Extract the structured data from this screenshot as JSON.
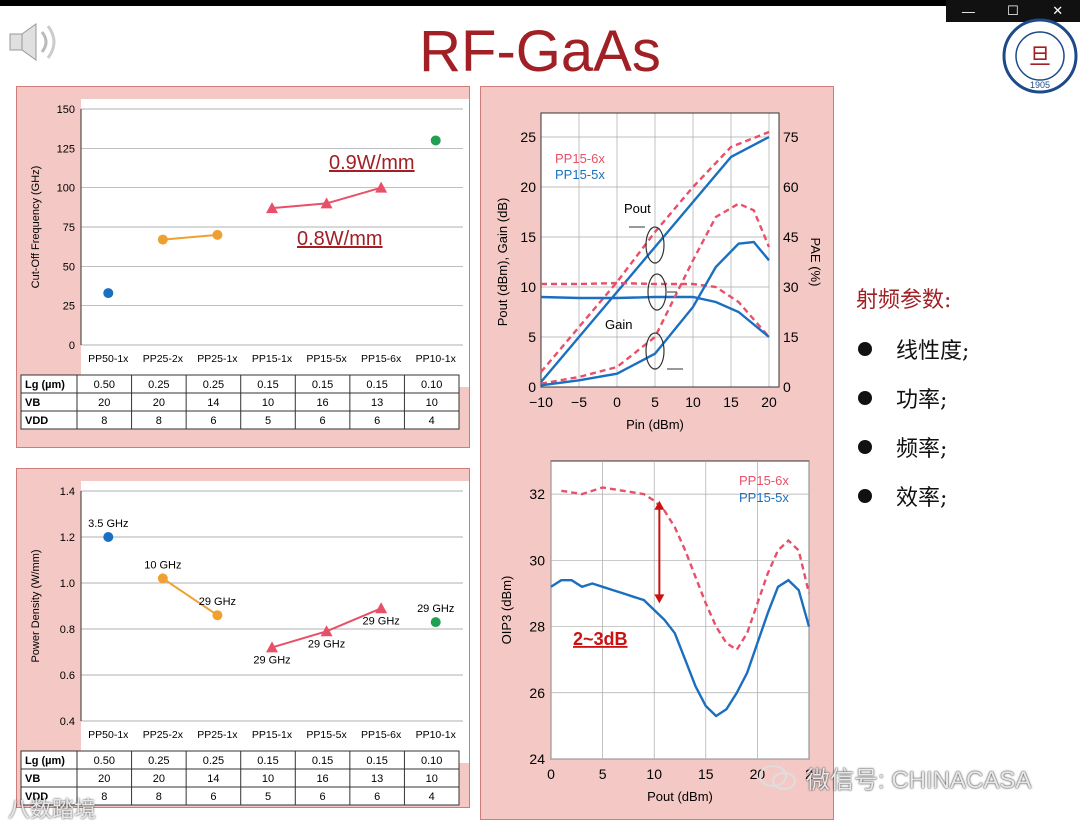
{
  "slide": {
    "title": "RF-GaAs",
    "logo_text": "FUDAN UNIVERSITY",
    "logo_year": "1905",
    "window_controls": [
      "—",
      "☐",
      "✕"
    ]
  },
  "params": {
    "heading": "射频参数:",
    "items": [
      "线性度;",
      "功率;",
      "频率;",
      "效率;"
    ]
  },
  "watermark": {
    "text": "微信号: CHINACASA",
    "secondary": "八数踏境"
  },
  "colors": {
    "title": "#a02025",
    "panel": "#f4c9c5",
    "orange": "#f0a030",
    "pink": "#e8506a",
    "blue": "#1a6fc0",
    "green": "#20a050"
  },
  "table": {
    "headers": [
      "PP50-1x",
      "PP25-2x",
      "PP25-1x",
      "PP15-1x",
      "PP15-5x",
      "PP15-6x",
      "PP10-1x"
    ],
    "rows": [
      {
        "label": "Lg (µm)",
        "values": [
          "0.50",
          "0.25",
          "0.25",
          "0.15",
          "0.15",
          "0.15",
          "0.10"
        ]
      },
      {
        "label": "VB",
        "values": [
          "20",
          "20",
          "14",
          "10",
          "16",
          "13",
          "10"
        ]
      },
      {
        "label": "VDD",
        "values": [
          "8",
          "8",
          "6",
          "5",
          "6",
          "6",
          "4"
        ]
      }
    ]
  },
  "chart_data": [
    {
      "type": "scatter",
      "ylabel": "Cut-Off Frequency (GHz)",
      "categories": [
        "PP50-1x",
        "PP25-2x",
        "PP25-1x",
        "PP15-1x",
        "PP15-5x",
        "PP15-6x",
        "PP10-1x"
      ],
      "ylim": [
        0,
        150
      ],
      "yticks": [
        "0",
        "25",
        "50",
        "75",
        "100",
        "125",
        "150"
      ],
      "grid": true,
      "series": [
        {
          "points": [
            {
              "cat": 0,
              "y": 33
            }
          ],
          "color": "#1a6fc0",
          "marker": "circle"
        },
        {
          "points": [
            {
              "cat": 1,
              "y": 67
            },
            {
              "cat": 2,
              "y": 70
            }
          ],
          "color": "#f0a030",
          "marker": "circle"
        },
        {
          "points": [
            {
              "cat": 3,
              "y": 87
            },
            {
              "cat": 4,
              "y": 90
            },
            {
              "cat": 5,
              "y": 100
            }
          ],
          "color": "#e8506a",
          "marker": "triangle"
        },
        {
          "points": [
            {
              "cat": 6,
              "y": 130
            }
          ],
          "color": "#20a050",
          "marker": "circle"
        }
      ],
      "annotations": [
        "0.9W/mm",
        "0.8W/mm"
      ]
    },
    {
      "type": "scatter",
      "ylabel": "Power Density (W/mm)",
      "categories": [
        "PP50-1x",
        "PP25-2x",
        "PP25-1x",
        "PP15-1x",
        "PP15-5x",
        "PP15-6x",
        "PP10-1x"
      ],
      "ylim": [
        0.4,
        1.4
      ],
      "yticks": [
        "0.4",
        "0.6",
        "0.8",
        "1.0",
        "1.2",
        "1.4"
      ],
      "grid": true,
      "series": [
        {
          "points": [
            {
              "cat": 0,
              "y": 1.2,
              "label": "3.5 GHz"
            }
          ],
          "color": "#1a6fc0",
          "marker": "circle"
        },
        {
          "points": [
            {
              "cat": 1,
              "y": 1.02,
              "label": "10 GHz"
            },
            {
              "cat": 2,
              "y": 0.86,
              "label": "29 GHz"
            }
          ],
          "color": "#f0a030",
          "marker": "circle"
        },
        {
          "points": [
            {
              "cat": 3,
              "y": 0.72,
              "label": "29 GHz"
            },
            {
              "cat": 4,
              "y": 0.79,
              "label": "29 GHz"
            },
            {
              "cat": 5,
              "y": 0.89,
              "label": "29 GHz"
            }
          ],
          "color": "#e8506a",
          "marker": "triangle"
        },
        {
          "points": [
            {
              "cat": 6,
              "y": 0.83,
              "label": "29 GHz"
            }
          ],
          "color": "#20a050",
          "marker": "circle"
        }
      ]
    },
    {
      "type": "line",
      "xlabel": "Pin (dBm)",
      "ylabel": "Pout (dBm), Gain (dB)",
      "y2label": "PAE (%)",
      "xlim": [
        -10,
        20
      ],
      "ylim": [
        0,
        25
      ],
      "y2lim": [
        0,
        75
      ],
      "xticks": [
        "−10",
        "−5",
        "0",
        "5",
        "10",
        "15",
        "20"
      ],
      "yticks": [
        "0",
        "5",
        "10",
        "15",
        "20",
        "25"
      ],
      "y2ticks": [
        "0",
        "15",
        "30",
        "45",
        "60",
        "75"
      ],
      "legend": [
        "PP15-6x",
        "PP15-5x"
      ],
      "annotations": [
        "Pout",
        "Gain"
      ],
      "series": [
        {
          "name": "PP15-6x",
          "curve": "Pout",
          "axis": "left",
          "dashed": true,
          "color": "#e8506a",
          "x": [
            -10,
            -5,
            0,
            5,
            10,
            15,
            20
          ],
          "y": [
            1.5,
            6,
            10.5,
            15.5,
            20,
            24,
            25.5
          ]
        },
        {
          "name": "PP15-5x",
          "curve": "Pout",
          "axis": "left",
          "dashed": false,
          "color": "#1a6fc0",
          "x": [
            -10,
            -5,
            0,
            5,
            10,
            15,
            20
          ],
          "y": [
            0.5,
            5,
            9.5,
            14,
            18.5,
            23,
            25
          ]
        },
        {
          "name": "PP15-6x",
          "curve": "Gain",
          "axis": "left",
          "dashed": true,
          "color": "#e8506a",
          "x": [
            -10,
            -5,
            0,
            5,
            10,
            13,
            16,
            20
          ],
          "y": [
            10.3,
            10.3,
            10.4,
            10.3,
            10.3,
            10,
            8.5,
            5
          ]
        },
        {
          "name": "PP15-5x",
          "curve": "Gain",
          "axis": "left",
          "dashed": false,
          "color": "#1a6fc0",
          "x": [
            -10,
            -5,
            0,
            5,
            10,
            13,
            16,
            20
          ],
          "y": [
            9,
            8.9,
            8.9,
            9,
            9,
            8.5,
            7.5,
            5
          ]
        },
        {
          "name": "PP15-6x",
          "curve": "PAE",
          "axis": "right",
          "dashed": true,
          "color": "#e8506a",
          "x": [
            -10,
            -5,
            0,
            5,
            10,
            13,
            16,
            18,
            20
          ],
          "y": [
            1,
            3,
            6,
            15,
            38,
            51,
            55,
            53,
            42
          ]
        },
        {
          "name": "PP15-5x",
          "curve": "PAE",
          "axis": "right",
          "dashed": false,
          "color": "#1a6fc0",
          "x": [
            -10,
            -5,
            0,
            5,
            10,
            13,
            16,
            18,
            20
          ],
          "y": [
            0.5,
            2,
            4,
            10,
            24,
            36,
            43,
            43.5,
            38
          ]
        }
      ]
    },
    {
      "type": "line",
      "xlabel": "Pout (dBm)",
      "ylabel": "OIP3 (dBm)",
      "xlim": [
        0,
        25
      ],
      "ylim": [
        24,
        33
      ],
      "xticks": [
        "0",
        "5",
        "10",
        "15",
        "20",
        "2"
      ],
      "yticks": [
        "24",
        "26",
        "28",
        "30",
        "32"
      ],
      "legend": [
        "PP15-6x",
        "PP15-5x"
      ],
      "annotation": "2~3dB",
      "series": [
        {
          "name": "PP15-6x",
          "dashed": true,
          "color": "#e8506a",
          "x": [
            1,
            3,
            5,
            7,
            9,
            10,
            11,
            12,
            13,
            14,
            15,
            16,
            17,
            18,
            19,
            20,
            21,
            22,
            23,
            24,
            25
          ],
          "y": [
            32.1,
            32.0,
            32.2,
            32.1,
            32.0,
            31.8,
            31.5,
            31.0,
            30.3,
            29.5,
            28.7,
            28.0,
            27.5,
            27.3,
            27.8,
            28.7,
            29.6,
            30.3,
            30.6,
            30.3,
            29.0
          ]
        },
        {
          "name": "PP15-5x",
          "dashed": false,
          "color": "#1a6fc0",
          "x": [
            0,
            1,
            2,
            3,
            4,
            5,
            6,
            7,
            8,
            9,
            10,
            11,
            12,
            13,
            14,
            15,
            16,
            17,
            18,
            19,
            20,
            21,
            22,
            23,
            24,
            25
          ],
          "y": [
            29.2,
            29.4,
            29.4,
            29.2,
            29.3,
            29.2,
            29.1,
            29.0,
            28.9,
            28.8,
            28.5,
            28.2,
            27.8,
            27.0,
            26.2,
            25.6,
            25.3,
            25.5,
            26.0,
            26.6,
            27.5,
            28.4,
            29.2,
            29.4,
            29.1,
            28.0
          ]
        }
      ]
    }
  ]
}
